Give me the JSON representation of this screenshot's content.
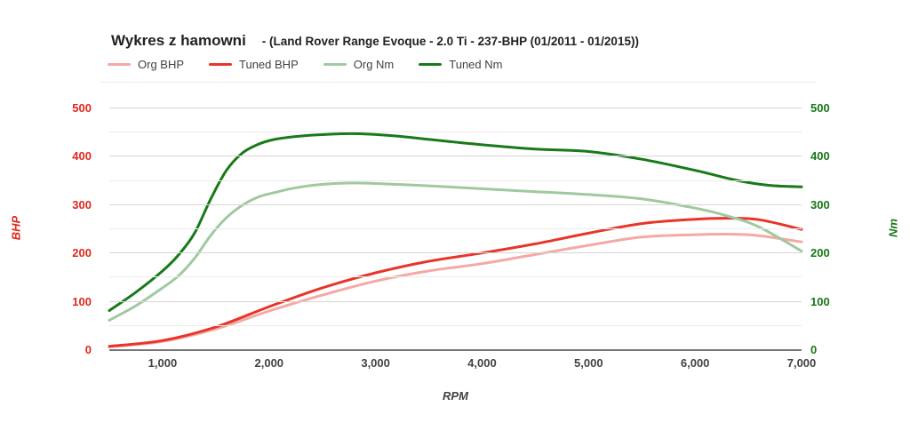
{
  "title": {
    "main": "Wykres z hamowni",
    "sub": "- (Land Rover Range Evoque - 2.0 Ti - 237-BHP (01/2011 - 01/2015))"
  },
  "axes": {
    "left": {
      "label": "BHP",
      "color": "#e0271f",
      "ticks": [
        0,
        100,
        200,
        300,
        400,
        500
      ]
    },
    "right": {
      "label": "Nm",
      "color": "#177717",
      "ticks": [
        0,
        100,
        200,
        300,
        400,
        500
      ]
    },
    "x": {
      "label": "RPM",
      "color": "#424242",
      "ticks": [
        {
          "rpm": 1000,
          "label": "1,000"
        },
        {
          "rpm": 2000,
          "label": "2,000"
        },
        {
          "rpm": 3000,
          "label": "3,000"
        },
        {
          "rpm": 4000,
          "label": "4,000"
        },
        {
          "rpm": 5000,
          "label": "5,000"
        },
        {
          "rpm": 6000,
          "label": "6,000"
        },
        {
          "rpm": 7000,
          "label": "7,000"
        }
      ]
    }
  },
  "chart_data": {
    "type": "line",
    "title": "Wykres z hamowni - (Land Rover Range Evoque - 2.0 Ti - 237-BHP (01/2011 - 01/2015))",
    "xlabel": "RPM",
    "ylabel_left": "BHP",
    "ylabel_right": "Nm",
    "xlim": [
      500,
      7000
    ],
    "ylim": [
      0,
      500
    ],
    "grid": "horizontal-only",
    "legend_position": "top-left",
    "series": [
      {
        "name": "Org BHP",
        "axis": "left",
        "color": "#f4a9a5",
        "points": [
          [
            500,
            5
          ],
          [
            1000,
            16
          ],
          [
            1500,
            42
          ],
          [
            2000,
            79
          ],
          [
            2500,
            112
          ],
          [
            3000,
            141
          ],
          [
            3500,
            162
          ],
          [
            4000,
            177
          ],
          [
            4500,
            196
          ],
          [
            5000,
            215
          ],
          [
            5500,
            232
          ],
          [
            6000,
            237
          ],
          [
            6300,
            238
          ],
          [
            6600,
            235
          ],
          [
            7000,
            222
          ]
        ]
      },
      {
        "name": "Tuned BHP",
        "axis": "left",
        "color": "#e8352a",
        "points": [
          [
            500,
            6
          ],
          [
            1000,
            18
          ],
          [
            1500,
            46
          ],
          [
            2000,
            88
          ],
          [
            2500,
            127
          ],
          [
            3000,
            158
          ],
          [
            3500,
            182
          ],
          [
            4000,
            199
          ],
          [
            4500,
            218
          ],
          [
            5000,
            240
          ],
          [
            5500,
            260
          ],
          [
            6000,
            269
          ],
          [
            6300,
            271
          ],
          [
            6600,
            268
          ],
          [
            7000,
            248
          ]
        ]
      },
      {
        "name": "Org Nm",
        "axis": "right",
        "color": "#a0c9a0",
        "points": [
          [
            500,
            60
          ],
          [
            750,
            90
          ],
          [
            1000,
            127
          ],
          [
            1150,
            152
          ],
          [
            1300,
            188
          ],
          [
            1450,
            235
          ],
          [
            1600,
            272
          ],
          [
            1750,
            298
          ],
          [
            1900,
            315
          ],
          [
            2050,
            324
          ],
          [
            2250,
            334
          ],
          [
            2500,
            341
          ],
          [
            2800,
            344
          ],
          [
            3200,
            341
          ],
          [
            3500,
            338
          ],
          [
            4000,
            332
          ],
          [
            4500,
            326
          ],
          [
            5000,
            320
          ],
          [
            5500,
            311
          ],
          [
            6000,
            292
          ],
          [
            6300,
            276
          ],
          [
            6600,
            253
          ],
          [
            7000,
            203
          ]
        ]
      },
      {
        "name": "Tuned Nm",
        "axis": "right",
        "color": "#187a18",
        "points": [
          [
            500,
            80
          ],
          [
            750,
            118
          ],
          [
            1000,
            162
          ],
          [
            1150,
            195
          ],
          [
            1300,
            240
          ],
          [
            1450,
            310
          ],
          [
            1600,
            370
          ],
          [
            1750,
            406
          ],
          [
            1900,
            424
          ],
          [
            2050,
            434
          ],
          [
            2250,
            440
          ],
          [
            2500,
            444
          ],
          [
            2800,
            446
          ],
          [
            3200,
            441
          ],
          [
            3500,
            434
          ],
          [
            4000,
            423
          ],
          [
            4500,
            414
          ],
          [
            5000,
            409
          ],
          [
            5500,
            393
          ],
          [
            6000,
            370
          ],
          [
            6400,
            349
          ],
          [
            6700,
            339
          ],
          [
            7000,
            336
          ]
        ]
      }
    ]
  }
}
